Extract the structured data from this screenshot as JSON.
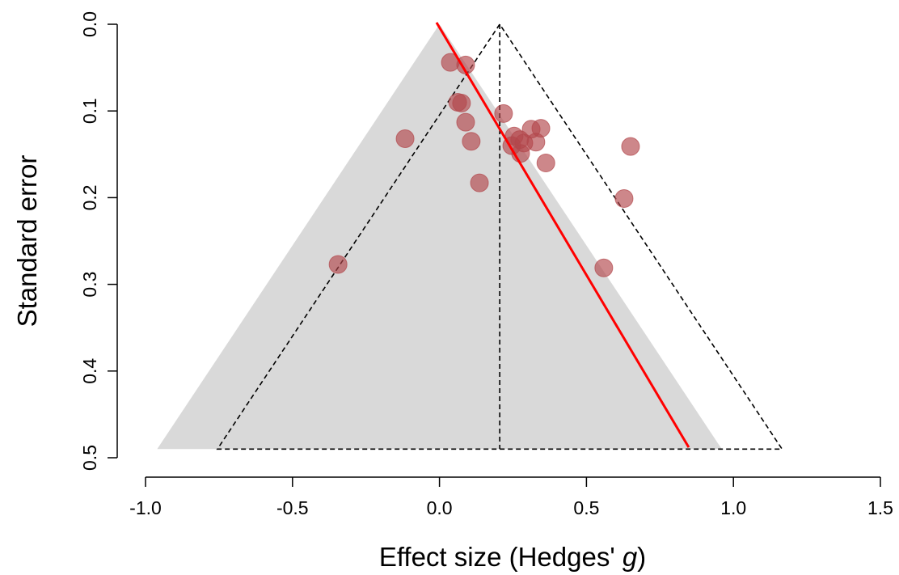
{
  "chart_data": {
    "type": "scatter",
    "xlabel": {
      "text": "Effect size (Hedges' ",
      "italic": "g",
      "tail": ")"
    },
    "ylabel": "Standard error",
    "xlim": [
      -1.0,
      1.5
    ],
    "ylim": [
      0.5,
      0.0
    ],
    "xticks": [
      {
        "value": -1.0,
        "label": "-1.0"
      },
      {
        "value": -0.5,
        "label": "-0.5"
      },
      {
        "value": 0.0,
        "label": "0.0"
      },
      {
        "value": 0.5,
        "label": "0.5"
      },
      {
        "value": 1.0,
        "label": "1.0"
      },
      {
        "value": 1.5,
        "label": "1.5"
      }
    ],
    "yticks": [
      {
        "value": 0.0,
        "label": "0.0"
      },
      {
        "value": 0.1,
        "label": "0.1"
      },
      {
        "value": 0.2,
        "label": "0.2"
      },
      {
        "value": 0.3,
        "label": "0.3"
      },
      {
        "value": 0.4,
        "label": "0.4"
      },
      {
        "value": 0.5,
        "label": "0.5"
      }
    ],
    "funnels": [
      {
        "center": 0.0,
        "z": 1.96,
        "se_max": 0.49,
        "style": "shaded",
        "color": "#d9d9d9"
      },
      {
        "center": 0.205,
        "z": 1.96,
        "se_max": 0.49,
        "style": "dashed",
        "color": "#000000"
      }
    ],
    "regression": {
      "color": "#ff0000",
      "x": [
        -0.01,
        0.848
      ],
      "y": [
        -0.002,
        0.488
      ]
    },
    "series": [
      {
        "color": "#b2474b",
        "x": [
          0.037,
          0.089,
          0.062,
          0.075,
          0.089,
          0.108,
          -0.117,
          0.136,
          0.218,
          0.312,
          0.345,
          0.254,
          0.273,
          0.246,
          0.287,
          0.328,
          0.276,
          0.362,
          0.65,
          0.628,
          0.559,
          -0.345
        ],
        "values": [
          0.044,
          0.047,
          0.09,
          0.091,
          0.113,
          0.135,
          0.132,
          0.183,
          0.103,
          0.121,
          0.12,
          0.129,
          0.133,
          0.14,
          0.137,
          0.136,
          0.149,
          0.16,
          0.141,
          0.201,
          0.281,
          0.277
        ]
      }
    ]
  }
}
